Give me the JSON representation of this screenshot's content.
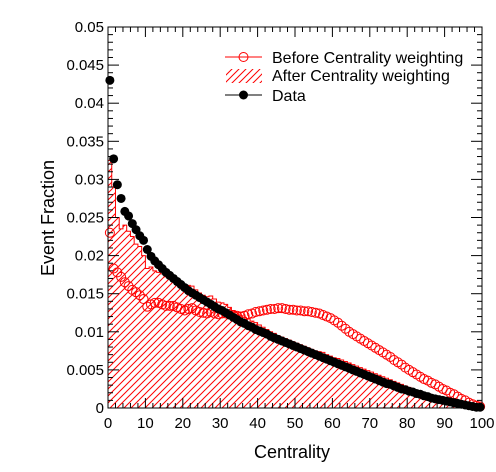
{
  "chart_data": {
    "type": "scatter",
    "xlabel": "Centrality",
    "ylabel": "Event Fraction",
    "xlim": [
      0,
      100
    ],
    "ylim": [
      0,
      0.05
    ],
    "x_ticks": [
      "0",
      "10",
      "20",
      "30",
      "40",
      "50",
      "60",
      "70",
      "80",
      "90",
      "100"
    ],
    "y_ticks": [
      "0",
      "0.005",
      "0.01",
      "0.015",
      "0.02",
      "0.025",
      "0.03",
      "0.035",
      "0.04",
      "0.045",
      "0.05"
    ],
    "legend_position": "top-right",
    "series": [
      {
        "name": "Before Centrality weighting",
        "style": "open-circle",
        "color": "#ff0000",
        "x": [
          0.5,
          1.5,
          2.5,
          3.5,
          4.5,
          5.5,
          6.5,
          7.5,
          8.5,
          9.5,
          10.5,
          11.5,
          12.5,
          13.5,
          14.5,
          15.5,
          16.5,
          17.5,
          18.5,
          19.5,
          20.5,
          21.5,
          22.5,
          23.5,
          24.5,
          25.5,
          26.5,
          27.5,
          28.5,
          29.5,
          30.5,
          31.5,
          32.5,
          33.5,
          34.5,
          35.5,
          36.5,
          37.5,
          38.5,
          39.5,
          40.5,
          41.5,
          42.5,
          43.5,
          44.5,
          45.5,
          46.5,
          47.5,
          48.5,
          49.5,
          50.5,
          51.5,
          52.5,
          53.5,
          54.5,
          55.5,
          56.5,
          57.5,
          58.5,
          59.5,
          60.5,
          61.5,
          62.5,
          63.5,
          64.5,
          65.5,
          66.5,
          67.5,
          68.5,
          69.5,
          70.5,
          71.5,
          72.5,
          73.5,
          74.5,
          75.5,
          76.5,
          77.5,
          78.5,
          79.5,
          80.5,
          81.5,
          82.5,
          83.5,
          84.5,
          85.5,
          86.5,
          87.5,
          88.5,
          89.5,
          90.5,
          91.5,
          92.5,
          93.5,
          94.5,
          95.5,
          96.5,
          97.5,
          98.5,
          99.5
        ],
        "y": [
          0.023,
          0.0183,
          0.0178,
          0.0172,
          0.0165,
          0.016,
          0.0155,
          0.0152,
          0.0148,
          0.0143,
          0.0133,
          0.0136,
          0.0138,
          0.0138,
          0.0136,
          0.0134,
          0.0134,
          0.0134,
          0.0132,
          0.013,
          0.0128,
          0.013,
          0.0131,
          0.0128,
          0.0126,
          0.0125,
          0.0124,
          0.0126,
          0.0124,
          0.0123,
          0.0124,
          0.0124,
          0.0123,
          0.0122,
          0.0121,
          0.012,
          0.0121,
          0.0123,
          0.0124,
          0.0126,
          0.0127,
          0.0128,
          0.0129,
          0.013,
          0.013,
          0.0131,
          0.0131,
          0.013,
          0.0129,
          0.0129,
          0.0128,
          0.0128,
          0.0127,
          0.0127,
          0.0126,
          0.0125,
          0.0124,
          0.0122,
          0.012,
          0.0118,
          0.0115,
          0.0112,
          0.0108,
          0.0104,
          0.01,
          0.0097,
          0.0094,
          0.0091,
          0.0088,
          0.0085,
          0.0082,
          0.0079,
          0.0076,
          0.0073,
          0.007,
          0.0067,
          0.0063,
          0.006,
          0.0057,
          0.0053,
          0.005,
          0.0047,
          0.0044,
          0.0041,
          0.0038,
          0.0036,
          0.0033,
          0.0031,
          0.0028,
          0.0025,
          0.0023,
          0.002,
          0.0018,
          0.0015,
          0.0012,
          0.001,
          0.0007,
          0.0005,
          0.0003,
          0.0002
        ]
      },
      {
        "name": "After Centrality weighting",
        "style": "hatched-histogram",
        "color": "#ff0000",
        "x": [
          0.5,
          1.5,
          2.5,
          3.5,
          4.5,
          5.5,
          6.5,
          7.5,
          8.5,
          9.5,
          10.5,
          11.5,
          12.5,
          13.5,
          14.5,
          15.5,
          16.5,
          17.5,
          18.5,
          19.5,
          20.5,
          21.5,
          22.5,
          23.5,
          24.5,
          25.5,
          26.5,
          27.5,
          28.5,
          29.5,
          30.5,
          31.5,
          32.5,
          33.5,
          34.5,
          35.5,
          36.5,
          37.5,
          38.5,
          39.5,
          40.5,
          41.5,
          42.5,
          43.5,
          44.5,
          45.5,
          46.5,
          47.5,
          48.5,
          49.5,
          50.5,
          51.5,
          52.5,
          53.5,
          54.5,
          55.5,
          56.5,
          57.5,
          58.5,
          59.5,
          60.5,
          61.5,
          62.5,
          63.5,
          64.5,
          65.5,
          66.5,
          67.5,
          68.5,
          69.5,
          70.5,
          71.5,
          72.5,
          73.5,
          74.5,
          75.5,
          76.5,
          77.5,
          78.5,
          79.5,
          80.5,
          81.5,
          82.5,
          83.5,
          84.5,
          85.5,
          86.5,
          87.5,
          88.5,
          89.5,
          90.5,
          91.5,
          92.5,
          93.5,
          94.5,
          95.5,
          96.5,
          97.5,
          98.5,
          99.5
        ],
        "y": [
          0.0325,
          0.029,
          0.025,
          0.0235,
          0.024,
          0.0232,
          0.0225,
          0.0215,
          0.0212,
          0.02,
          0.0183,
          0.0185,
          0.018,
          0.0178,
          0.0176,
          0.0172,
          0.017,
          0.0169,
          0.0166,
          0.0163,
          0.0158,
          0.0161,
          0.016,
          0.0155,
          0.0151,
          0.0148,
          0.0146,
          0.0147,
          0.0143,
          0.0139,
          0.0138,
          0.0136,
          0.0132,
          0.0128,
          0.0125,
          0.0121,
          0.0119,
          0.0117,
          0.0114,
          0.0112,
          0.0109,
          0.0106,
          0.0103,
          0.01,
          0.0098,
          0.0095,
          0.0093,
          0.0091,
          0.0089,
          0.0087,
          0.0085,
          0.0083,
          0.0081,
          0.0079,
          0.0077,
          0.0075,
          0.0074,
          0.0073,
          0.007,
          0.0068,
          0.0066,
          0.0065,
          0.0063,
          0.0061,
          0.0059,
          0.0057,
          0.0055,
          0.0053,
          0.0051,
          0.0049,
          0.0047,
          0.0045,
          0.0043,
          0.0041,
          0.0039,
          0.0037,
          0.0035,
          0.0033,
          0.0031,
          0.0029,
          0.0027,
          0.0025,
          0.0023,
          0.0021,
          0.0019,
          0.0017,
          0.0015,
          0.0013,
          0.0012,
          0.001,
          0.0009,
          0.0008,
          0.0007,
          0.0006,
          0.0005,
          0.0004,
          0.0003,
          0.0002,
          0.0001,
          0.0
        ]
      },
      {
        "name": "Data",
        "style": "filled-circle",
        "color": "#000000",
        "x": [
          0.5,
          1.5,
          2.5,
          3.5,
          4.5,
          5.5,
          6.5,
          7.5,
          8.5,
          9.5,
          10.5,
          11.5,
          12.5,
          13.5,
          14.5,
          15.5,
          16.5,
          17.5,
          18.5,
          19.5,
          20.5,
          21.5,
          22.5,
          23.5,
          24.5,
          25.5,
          26.5,
          27.5,
          28.5,
          29.5,
          30.5,
          31.5,
          32.5,
          33.5,
          34.5,
          35.5,
          36.5,
          37.5,
          38.5,
          39.5,
          40.5,
          41.5,
          42.5,
          43.5,
          44.5,
          45.5,
          46.5,
          47.5,
          48.5,
          49.5,
          50.5,
          51.5,
          52.5,
          53.5,
          54.5,
          55.5,
          56.5,
          57.5,
          58.5,
          59.5,
          60.5,
          61.5,
          62.5,
          63.5,
          64.5,
          65.5,
          66.5,
          67.5,
          68.5,
          69.5,
          70.5,
          71.5,
          72.5,
          73.5,
          74.5,
          75.5,
          76.5,
          77.5,
          78.5,
          79.5,
          80.5,
          81.5,
          82.5,
          83.5,
          84.5,
          85.5,
          86.5,
          87.5,
          88.5,
          89.5,
          90.5,
          91.5,
          92.5,
          93.5,
          94.5,
          95.5,
          96.5,
          97.5,
          98.5,
          99.5
        ],
        "y": [
          0.043,
          0.0327,
          0.0293,
          0.0275,
          0.0258,
          0.0252,
          0.0242,
          0.0234,
          0.0226,
          0.022,
          0.0208,
          0.0199,
          0.0193,
          0.0188,
          0.0183,
          0.0178,
          0.0174,
          0.017,
          0.0166,
          0.0162,
          0.0158,
          0.0154,
          0.0151,
          0.0148,
          0.0145,
          0.0142,
          0.0139,
          0.0136,
          0.0133,
          0.013,
          0.0128,
          0.0125,
          0.0122,
          0.0119,
          0.0116,
          0.0113,
          0.0111,
          0.0108,
          0.0106,
          0.0103,
          0.0101,
          0.0099,
          0.0097,
          0.0094,
          0.0092,
          0.009,
          0.0088,
          0.0086,
          0.0084,
          0.0082,
          0.008,
          0.0078,
          0.0076,
          0.0074,
          0.0072,
          0.007,
          0.0068,
          0.0066,
          0.0064,
          0.0062,
          0.006,
          0.0058,
          0.0056,
          0.0054,
          0.0052,
          0.005,
          0.0048,
          0.0046,
          0.0044,
          0.0042,
          0.004,
          0.0038,
          0.0036,
          0.0034,
          0.0032,
          0.0031,
          0.0029,
          0.0027,
          0.0025,
          0.0024,
          0.0022,
          0.0021,
          0.0019,
          0.0018,
          0.0016,
          0.0015,
          0.0013,
          0.0012,
          0.0011,
          0.001,
          0.0009,
          0.0008,
          0.0007,
          0.0006,
          0.0005,
          0.0004,
          0.0003,
          0.0002,
          0.0001,
          0.0001
        ]
      }
    ]
  }
}
